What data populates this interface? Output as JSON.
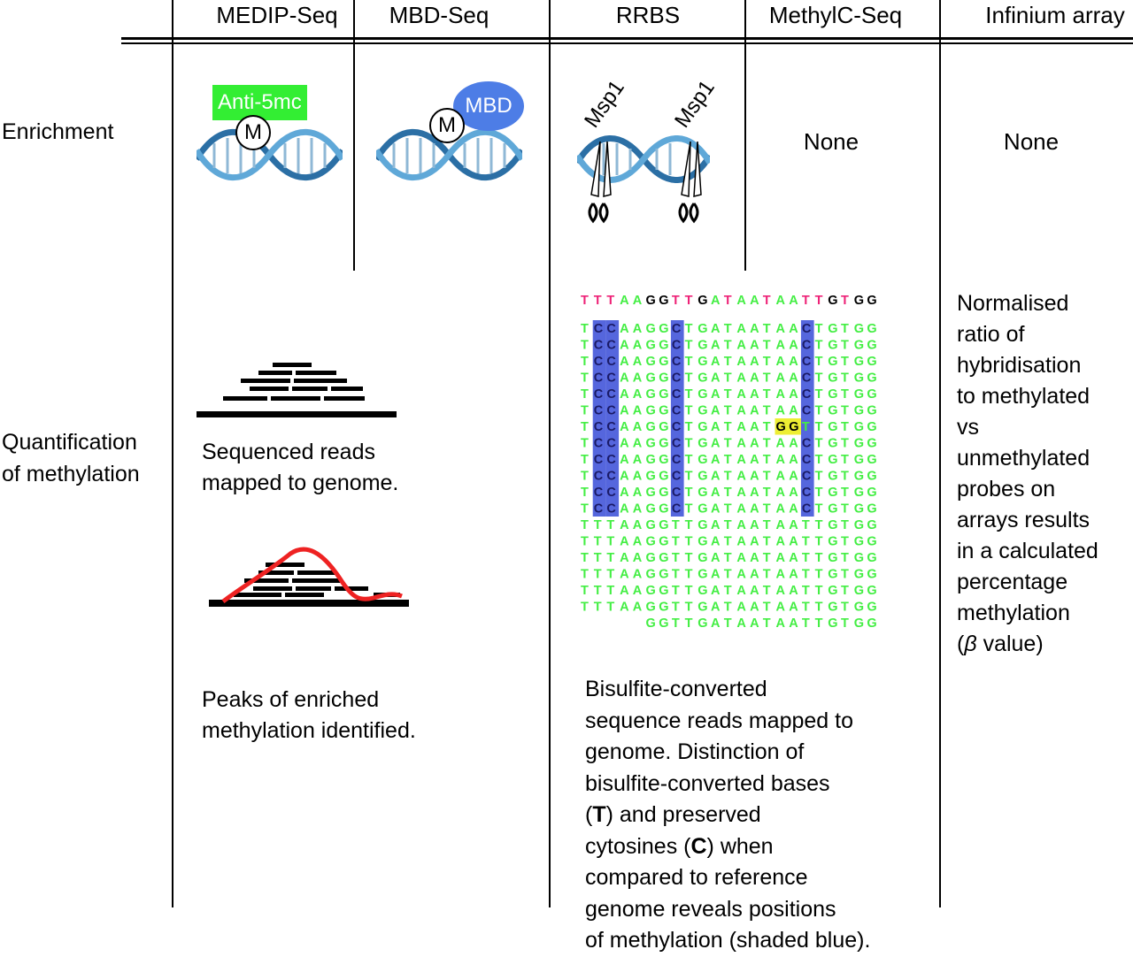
{
  "columns": [
    "MEDIP-Seq",
    "MBD-Seq",
    "RRBS",
    "MethylC-Seq",
    "Infinium array"
  ],
  "rows": {
    "enrichment": "Enrichment",
    "quantification": [
      "Quantification",
      "of methylation"
    ]
  },
  "enrichment": {
    "medip_label": "Anti-5mc",
    "methyl_mark": "M",
    "mbd_label": "MBD",
    "enzyme": "Msp1",
    "methylc": "None",
    "infinium": "None"
  },
  "quantification": {
    "reads_caption": [
      "Sequenced reads",
      "mapped to genome."
    ],
    "peaks_caption": [
      "Peaks of enriched",
      "methylation identified."
    ],
    "rrbs_caption_lines": [
      "Bisulfite-converted",
      "sequence reads mapped to",
      "genome. Distinction of",
      "bisulfite-converted bases",
      [
        "(",
        "T",
        ") and preserved"
      ],
      [
        "cytosines (",
        "C",
        ") when"
      ],
      "compared to reference",
      "genome reveals positions",
      "of methylation (shaded blue)."
    ],
    "infinium_caption_lines": [
      "Normalised",
      "ratio of",
      "hybridisation",
      "to  methylated",
      "vs",
      "unmethylated",
      "probes on",
      "arrays results",
      "in a calculated",
      "percentage",
      "methylation",
      [
        "(",
        "β",
        " value)"
      ]
    ]
  },
  "alignment": {
    "reference": "TTTAAGGTTGATAATAATTGTGG",
    "methylated_read": "TCCAAGGCTGATAATAACTGTGG",
    "variant_read": "TCCAAGGCTGATAATGGTTGTGG",
    "unmethylated_read": "TTTAAGGTTGATAATAATTGTGG",
    "partial_read": "GGTTGATAATAATTGTGG",
    "colors": {
      "T": "#ee2277",
      "A": "#44ee44",
      "G": "#000000",
      "C": "#2222aa",
      "read": "#44ee44",
      "shade": "#5566dd",
      "variant_bg": "#eeee33"
    }
  }
}
